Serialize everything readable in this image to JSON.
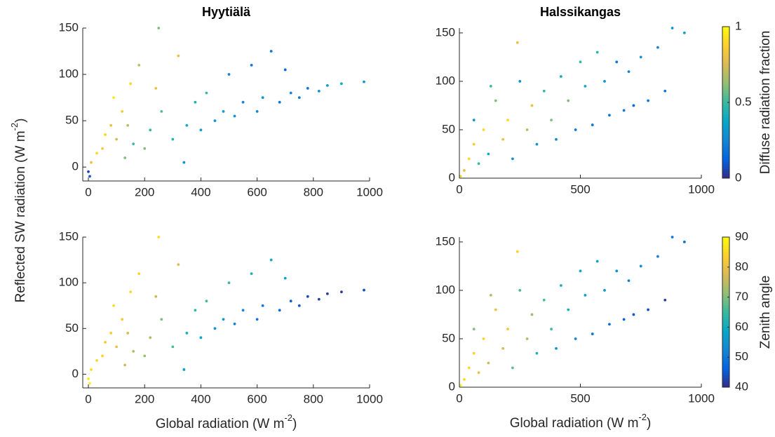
{
  "shared_ylabel": {
    "text": "Reflected SW radiation (W m",
    "superscript": "-2",
    "suffix": ")"
  },
  "chart_data": [
    {
      "type": "scatter",
      "title": "Hyytiälä",
      "xlim": [
        -20,
        1000
      ],
      "xticks": [
        0,
        200,
        400,
        600,
        800,
        1000
      ],
      "ylim": [
        -15,
        150
      ],
      "yticks": [
        0,
        50,
        100,
        150
      ],
      "clim": [
        0,
        1
      ],
      "colormap": [
        "#352a87",
        "#0363e1",
        "#1485d4",
        "#06a7c6",
        "#38b99e",
        "#92bf73",
        "#d9ba56",
        "#fcce2e",
        "#f9fb0e"
      ],
      "x": [
        0,
        5,
        10,
        30,
        50,
        60,
        80,
        100,
        120,
        150,
        180,
        200,
        220,
        250,
        260,
        300,
        320,
        350,
        380,
        400,
        420,
        450,
        480,
        500,
        520,
        550,
        580,
        600,
        620,
        650,
        680,
        700,
        720,
        750,
        780,
        820,
        850,
        900,
        980,
        140,
        160,
        240,
        90,
        130,
        340
      ],
      "values": [
        -5,
        -10,
        5,
        15,
        20,
        35,
        45,
        30,
        60,
        90,
        110,
        20,
        40,
        150,
        60,
        30,
        120,
        45,
        70,
        40,
        80,
        50,
        60,
        100,
        55,
        70,
        110,
        60,
        75,
        125,
        70,
        105,
        80,
        75,
        85,
        82,
        88,
        90,
        92,
        45,
        25,
        85,
        75,
        10,
        5
      ],
      "c": [
        0.05,
        0.1,
        0.8,
        0.9,
        0.85,
        0.9,
        0.8,
        0.75,
        0.85,
        0.9,
        0.7,
        0.6,
        0.5,
        0.6,
        0.55,
        0.45,
        0.8,
        0.4,
        0.45,
        0.35,
        0.5,
        0.3,
        0.35,
        0.25,
        0.3,
        0.25,
        0.2,
        0.25,
        0.3,
        0.2,
        0.2,
        0.15,
        0.25,
        0.2,
        0.2,
        0.3,
        0.35,
        0.4,
        0.3,
        0.7,
        0.5,
        0.8,
        0.95,
        0.6,
        0.3
      ]
    },
    {
      "type": "scatter",
      "title": "Halssikangas",
      "xlim": [
        0,
        1000
      ],
      "xticks": [
        0,
        500,
        1000
      ],
      "ylim": [
        0,
        155
      ],
      "yticks": [
        0,
        50,
        100,
        150
      ],
      "clim": [
        0,
        1
      ],
      "cticks": [
        0,
        0.5,
        1
      ],
      "colorbar_label": "Diffuse radiation fraction",
      "colormap": [
        "#352a87",
        "#0363e1",
        "#1485d4",
        "#06a7c6",
        "#38b99e",
        "#92bf73",
        "#d9ba56",
        "#fcce2e",
        "#f9fb0e"
      ],
      "x": [
        5,
        20,
        40,
        60,
        80,
        100,
        120,
        150,
        180,
        200,
        220,
        250,
        280,
        300,
        320,
        350,
        380,
        400,
        420,
        450,
        480,
        500,
        520,
        550,
        570,
        600,
        620,
        650,
        680,
        700,
        720,
        750,
        780,
        820,
        850,
        880,
        930,
        60,
        130,
        240
      ],
      "values": [
        2,
        8,
        20,
        35,
        15,
        50,
        25,
        80,
        40,
        60,
        20,
        100,
        50,
        75,
        35,
        90,
        60,
        40,
        105,
        80,
        50,
        120,
        95,
        55,
        130,
        100,
        65,
        120,
        70,
        110,
        75,
        125,
        80,
        135,
        90,
        155,
        150,
        60,
        95,
        140
      ],
      "c": [
        0.9,
        0.8,
        0.9,
        0.85,
        0.5,
        0.9,
        0.4,
        0.6,
        0.8,
        0.9,
        0.3,
        0.3,
        0.7,
        0.8,
        0.3,
        0.5,
        0.6,
        0.25,
        0.4,
        0.6,
        0.2,
        0.5,
        0.4,
        0.2,
        0.45,
        0.3,
        0.2,
        0.2,
        0.2,
        0.25,
        0.15,
        0.3,
        0.2,
        0.25,
        0.2,
        0.3,
        0.35,
        0.3,
        0.5,
        0.8
      ]
    },
    {
      "type": "scatter",
      "xlabel": {
        "text": "Global radiation (W m",
        "superscript": "-2",
        "suffix": ")"
      },
      "xlim": [
        -20,
        1000
      ],
      "xticks": [
        0,
        200,
        400,
        600,
        800,
        1000
      ],
      "ylim": [
        -15,
        150
      ],
      "yticks": [
        0,
        50,
        100,
        150
      ],
      "clim": [
        40,
        90
      ],
      "colormap": [
        "#352a87",
        "#0363e1",
        "#1485d4",
        "#06a7c6",
        "#38b99e",
        "#92bf73",
        "#d9ba56",
        "#fcce2e",
        "#f9fb0e"
      ],
      "x": [
        0,
        5,
        10,
        30,
        50,
        60,
        80,
        100,
        120,
        150,
        180,
        200,
        220,
        250,
        260,
        300,
        320,
        350,
        380,
        400,
        420,
        450,
        480,
        500,
        520,
        550,
        580,
        600,
        620,
        650,
        680,
        700,
        720,
        750,
        780,
        820,
        850,
        900,
        980,
        140,
        160,
        240,
        90,
        130,
        340
      ],
      "values": [
        -5,
        -10,
        5,
        15,
        20,
        35,
        45,
        30,
        60,
        90,
        110,
        20,
        40,
        150,
        60,
        30,
        120,
        45,
        70,
        40,
        80,
        50,
        60,
        100,
        55,
        70,
        110,
        60,
        75,
        125,
        70,
        105,
        80,
        75,
        85,
        82,
        88,
        90,
        92,
        45,
        25,
        85,
        75,
        10,
        5
      ],
      "c": [
        88,
        89,
        86,
        85,
        84,
        82,
        83,
        80,
        82,
        85,
        84,
        72,
        74,
        86,
        70,
        66,
        78,
        62,
        64,
        58,
        66,
        55,
        56,
        65,
        52,
        52,
        62,
        50,
        50,
        60,
        47,
        58,
        46,
        45,
        44,
        43,
        42,
        42,
        44,
        78,
        74,
        76,
        86,
        76,
        58
      ]
    },
    {
      "type": "scatter",
      "xlabel": {
        "text": "Global radiation (W m",
        "superscript": "-2",
        "suffix": ")"
      },
      "xlim": [
        0,
        1000
      ],
      "xticks": [
        0,
        500,
        1000
      ],
      "ylim": [
        0,
        155
      ],
      "yticks": [
        0,
        50,
        100,
        150
      ],
      "clim": [
        40,
        90
      ],
      "cticks": [
        40,
        50,
        60,
        70,
        80,
        90
      ],
      "colorbar_label": "Zenith angle",
      "colormap": [
        "#352a87",
        "#0363e1",
        "#1485d4",
        "#06a7c6",
        "#38b99e",
        "#92bf73",
        "#d9ba56",
        "#fcce2e",
        "#f9fb0e"
      ],
      "x": [
        5,
        20,
        40,
        60,
        80,
        100,
        120,
        150,
        180,
        200,
        220,
        250,
        280,
        300,
        320,
        350,
        380,
        400,
        420,
        450,
        480,
        500,
        520,
        550,
        570,
        600,
        620,
        650,
        680,
        700,
        720,
        750,
        780,
        820,
        850,
        880,
        930,
        60,
        130,
        240
      ],
      "values": [
        2,
        8,
        20,
        35,
        15,
        50,
        25,
        80,
        40,
        60,
        20,
        100,
        50,
        75,
        35,
        90,
        60,
        40,
        105,
        80,
        50,
        120,
        95,
        55,
        130,
        100,
        65,
        120,
        70,
        110,
        75,
        125,
        80,
        135,
        90,
        155,
        150,
        60,
        95,
        140
      ],
      "c": [
        88,
        86,
        85,
        84,
        80,
        84,
        76,
        80,
        78,
        82,
        68,
        66,
        74,
        72,
        62,
        66,
        65,
        56,
        62,
        62,
        52,
        60,
        58,
        50,
        58,
        56,
        48,
        55,
        46,
        52,
        45,
        54,
        44,
        52,
        42,
        50,
        48,
        70,
        74,
        84
      ]
    }
  ]
}
